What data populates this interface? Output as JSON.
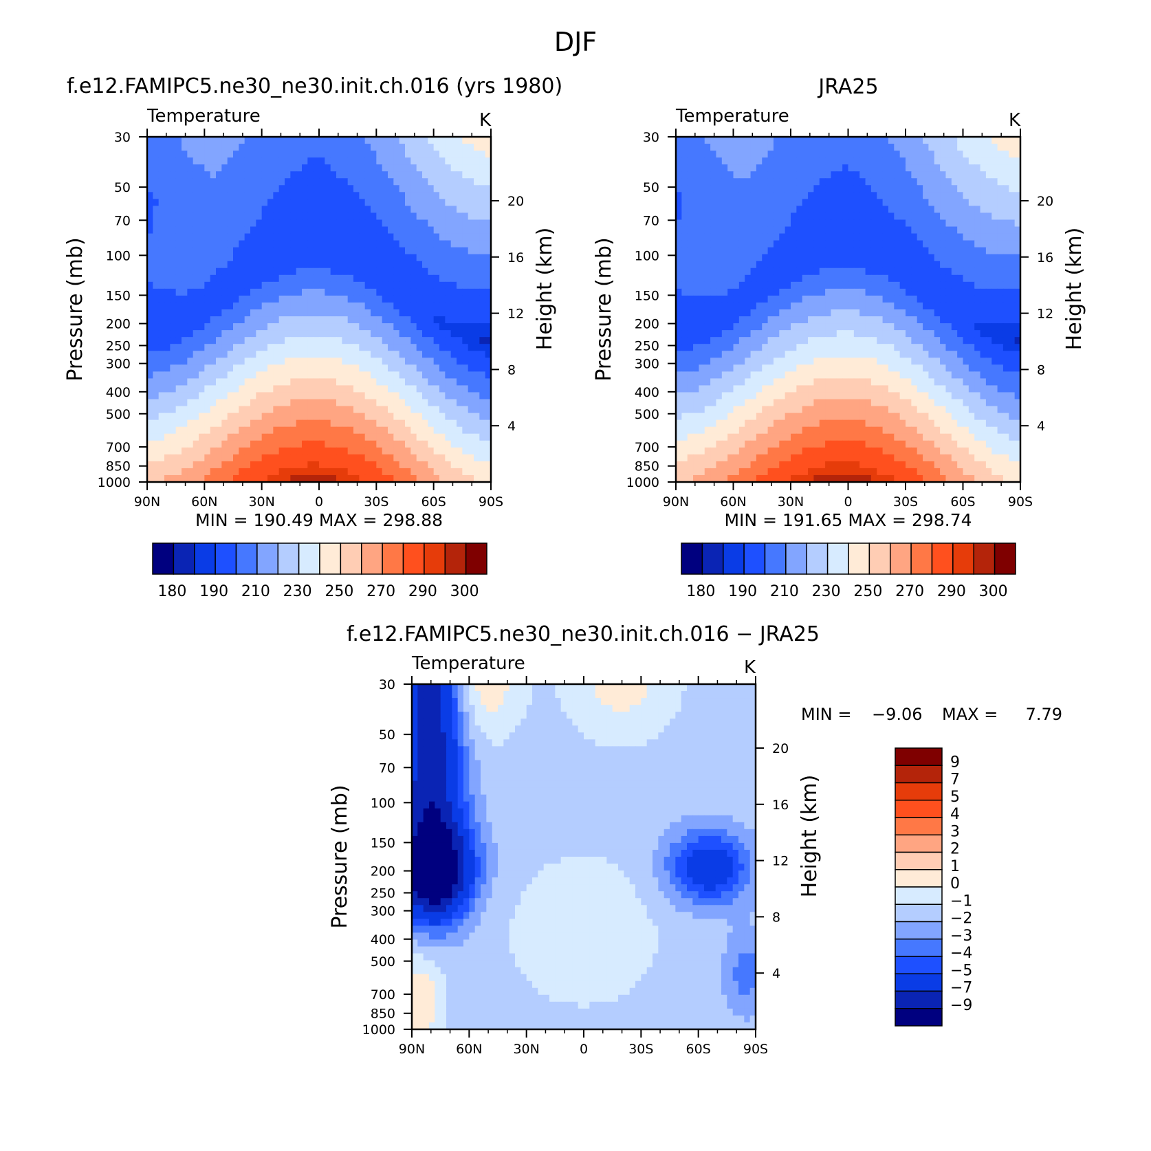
{
  "page_title": "DJF",
  "chart_data": [
    {
      "type": "heatmap",
      "title": "f.e12.FAMIPC5.ne30_ne30.init.ch.016 (yrs 1980)",
      "variable": "Temperature",
      "units": "K",
      "xlabel": "",
      "ylabel": "Pressure (mb)",
      "ylabel_right": "Height (km)",
      "x_ticks": [
        "90N",
        "60N",
        "30N",
        "0",
        "30S",
        "60S",
        "90S"
      ],
      "y_ticks": [
        30,
        50,
        70,
        100,
        150,
        200,
        250,
        300,
        400,
        500,
        700,
        850,
        1000
      ],
      "y_ticks_right": [
        4,
        8,
        12,
        16,
        20
      ],
      "y_log": true,
      "ylim": [
        1000,
        30
      ],
      "min_label": "MIN",
      "min_value": "190.49",
      "max_label": "MAX",
      "max_value": "298.88",
      "levels": [
        180,
        185,
        190,
        200,
        210,
        220,
        230,
        240,
        250,
        260,
        270,
        280,
        290,
        295,
        300
      ],
      "colorbar_labels": [
        "180",
        "190",
        "210",
        "230",
        "250",
        "270",
        "290",
        "300"
      ],
      "colors": [
        "#00007f",
        "#0a24b4",
        "#0a3ce6",
        "#1e50ff",
        "#4678ff",
        "#82a5ff",
        "#b4cdff",
        "#d7ebff",
        "#ffebd7",
        "#ffcdb4",
        "#ffa582",
        "#ff7846",
        "#ff501e",
        "#e63c0a",
        "#b4240a",
        "#7f0000"
      ],
      "field": "model"
    },
    {
      "type": "heatmap",
      "title": "JRA25",
      "variable": "Temperature",
      "units": "K",
      "xlabel": "",
      "ylabel": "Pressure (mb)",
      "ylabel_right": "Height (km)",
      "x_ticks": [
        "90N",
        "60N",
        "30N",
        "0",
        "30S",
        "60S",
        "90S"
      ],
      "y_ticks": [
        30,
        50,
        70,
        100,
        150,
        200,
        250,
        300,
        400,
        500,
        700,
        850,
        1000
      ],
      "y_ticks_right": [
        4,
        8,
        12,
        16,
        20
      ],
      "y_log": true,
      "ylim": [
        1000,
        30
      ],
      "min_label": "MIN",
      "min_value": "191.65",
      "max_label": "MAX",
      "max_value": "298.74",
      "levels": [
        180,
        185,
        190,
        200,
        210,
        220,
        230,
        240,
        250,
        260,
        270,
        280,
        290,
        295,
        300
      ],
      "colorbar_labels": [
        "180",
        "190",
        "210",
        "230",
        "250",
        "270",
        "290",
        "300"
      ],
      "colors": [
        "#00007f",
        "#0a24b4",
        "#0a3ce6",
        "#1e50ff",
        "#4678ff",
        "#82a5ff",
        "#b4cdff",
        "#d7ebff",
        "#ffebd7",
        "#ffcdb4",
        "#ffa582",
        "#ff7846",
        "#ff501e",
        "#e63c0a",
        "#b4240a",
        "#7f0000"
      ],
      "field": "obs"
    },
    {
      "type": "heatmap",
      "title": "f.e12.FAMIPC5.ne30_ne30.init.ch.016 − JRA25",
      "variable": "Temperature",
      "units": "K",
      "xlabel": "",
      "ylabel": "Pressure (mb)",
      "ylabel_right": "Height (km)",
      "x_ticks": [
        "90N",
        "60N",
        "30N",
        "0",
        "30S",
        "60S",
        "90S"
      ],
      "y_ticks": [
        30,
        50,
        70,
        100,
        150,
        200,
        250,
        300,
        400,
        500,
        700,
        850,
        1000
      ],
      "y_ticks_right": [
        4,
        8,
        12,
        16,
        20
      ],
      "y_log": true,
      "ylim": [
        1000,
        30
      ],
      "min_label": "MIN",
      "min_value": "−9.06",
      "max_label": "MAX",
      "max_value": "7.79",
      "levels": [
        -9,
        -7,
        -5,
        -4,
        -3,
        -2,
        -1,
        0,
        1,
        2,
        3,
        4,
        5,
        7,
        9
      ],
      "colorbar_labels": [
        "9",
        "7",
        "5",
        "4",
        "3",
        "2",
        "1",
        "0",
        "−1",
        "−2",
        "−3",
        "−4",
        "−5",
        "−7",
        "−9"
      ],
      "colors": [
        "#00007f",
        "#0a24b4",
        "#0a3ce6",
        "#1e50ff",
        "#4678ff",
        "#82a5ff",
        "#b4cdff",
        "#d7ebff",
        "#ffebd7",
        "#ffcdb4",
        "#ffa582",
        "#ff7846",
        "#ff501e",
        "#e63c0a",
        "#b4240a",
        "#7f0000"
      ],
      "field": "diff"
    }
  ]
}
